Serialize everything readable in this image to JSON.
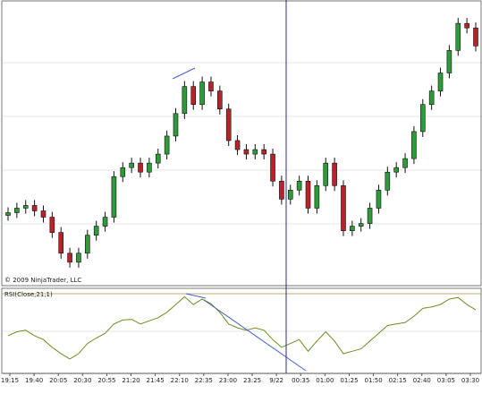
{
  "chart_data": [
    {
      "type": "candlestick",
      "watermark": "© 2009 NinjaTrader, LLC",
      "ylim": [
        0,
        310
      ],
      "up_color": "#2e9a3a",
      "down_color": "#b8232a",
      "open": [
        75,
        78,
        83,
        86,
        80,
        73,
        56,
        33,
        23,
        33,
        53,
        63,
        73,
        118,
        128,
        133,
        123,
        133,
        143,
        163,
        188,
        218,
        198,
        223,
        213,
        193,
        158,
        148,
        143,
        148,
        143,
        113,
        93,
        103,
        113,
        83,
        108,
        133,
        108,
        58,
        63,
        66,
        83,
        103,
        123,
        128,
        138,
        168,
        198,
        213,
        233,
        258,
        288,
        283
      ],
      "high": [
        84,
        89,
        92,
        92,
        86,
        79,
        62,
        39,
        39,
        59,
        69,
        79,
        124,
        134,
        139,
        139,
        139,
        149,
        169,
        194,
        224,
        224,
        229,
        229,
        219,
        199,
        164,
        154,
        154,
        154,
        149,
        119,
        109,
        119,
        119,
        114,
        139,
        139,
        114,
        69,
        72,
        89,
        109,
        129,
        134,
        144,
        174,
        204,
        219,
        239,
        264,
        294,
        294,
        289
      ],
      "low": [
        69,
        72,
        77,
        74,
        67,
        50,
        27,
        17,
        17,
        27,
        47,
        57,
        67,
        112,
        122,
        117,
        117,
        127,
        137,
        157,
        182,
        192,
        192,
        207,
        187,
        152,
        142,
        137,
        137,
        137,
        107,
        87,
        87,
        97,
        77,
        77,
        102,
        102,
        52,
        52,
        57,
        60,
        77,
        97,
        117,
        122,
        132,
        162,
        192,
        207,
        227,
        252,
        277,
        257
      ],
      "close": [
        78,
        83,
        86,
        80,
        73,
        56,
        33,
        23,
        33,
        53,
        63,
        73,
        118,
        128,
        133,
        123,
        133,
        143,
        163,
        188,
        218,
        198,
        223,
        213,
        193,
        158,
        148,
        143,
        148,
        143,
        113,
        93,
        103,
        113,
        83,
        108,
        133,
        108,
        58,
        63,
        66,
        83,
        103,
        123,
        128,
        138,
        168,
        198,
        213,
        233,
        258,
        288,
        283,
        263
      ]
    },
    {
      "type": "line",
      "title": "RSI(Close,21,1)",
      "color": "#6b8e23",
      "ylim": [
        0,
        100
      ],
      "values": [
        45,
        50,
        52,
        45,
        40,
        30,
        22,
        15,
        22,
        35,
        42,
        48,
        60,
        65,
        66,
        60,
        64,
        68,
        75,
        85,
        95,
        85,
        92,
        86,
        75,
        60,
        55,
        52,
        55,
        52,
        40,
        30,
        35,
        40,
        25,
        38,
        50,
        38,
        22,
        25,
        28,
        38,
        48,
        58,
        60,
        62,
        70,
        80,
        82,
        85,
        92,
        94,
        85,
        78
      ],
      "x_labels": [
        "19:15",
        "19:40",
        "20:05",
        "20:30",
        "20:55",
        "21:20",
        "21:45",
        "22:10",
        "22:35",
        "23:00",
        "23:25",
        "9/22",
        "00:35",
        "01:00",
        "01:25",
        "01:50",
        "02:15",
        "02:40",
        "03:05",
        "03:30"
      ]
    }
  ]
}
